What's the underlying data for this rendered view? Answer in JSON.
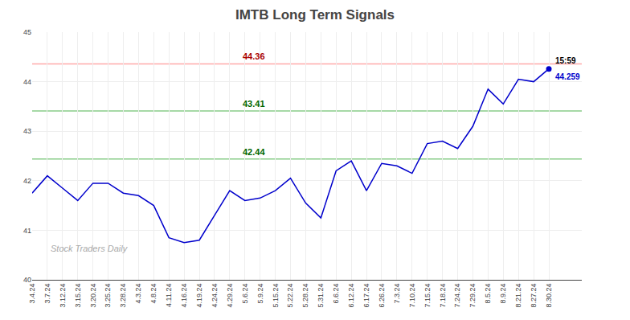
{
  "chart_data": {
    "type": "line",
    "title": "IMTB Long Term Signals",
    "categories": [
      "3.4.24",
      "3.7.24",
      "3.12.24",
      "3.15.24",
      "3.20.24",
      "3.25.24",
      "3.28.24",
      "4.3.24",
      "4.8.24",
      "4.11.24",
      "4.16.24",
      "4.19.24",
      "4.24.24",
      "4.29.24",
      "5.6.24",
      "5.9.24",
      "5.15.24",
      "5.22.24",
      "5.28.24",
      "5.31.24",
      "6.6.24",
      "6.12.24",
      "6.17.24",
      "6.26.24",
      "7.3.24",
      "7.10.24",
      "7.15.24",
      "7.18.24",
      "7.24.24",
      "7.29.24",
      "8.5.24",
      "8.9.24",
      "8.21.24",
      "8.27.24",
      "8.30.24"
    ],
    "values": [
      41.75,
      42.1,
      41.85,
      41.6,
      41.95,
      41.95,
      41.75,
      41.7,
      41.5,
      40.85,
      40.75,
      40.8,
      41.3,
      41.8,
      41.6,
      41.65,
      41.8,
      42.05,
      41.55,
      41.25,
      42.2,
      42.4,
      41.8,
      42.35,
      42.3,
      42.15,
      42.75,
      42.8,
      42.65,
      43.1,
      43.85,
      43.55,
      44.05,
      44.0,
      44.259
    ],
    "color": "#0000cc",
    "ylim": [
      40,
      45
    ],
    "yticks": [
      40,
      41,
      42,
      43,
      44,
      45
    ],
    "grid": true,
    "hlines": [
      {
        "value": 44.36,
        "label": "44.36",
        "color": "#ffaaaa",
        "label_color": "#aa0000"
      },
      {
        "value": 43.41,
        "label": "43.41",
        "color": "#88cc88",
        "label_color": "#006600"
      },
      {
        "value": 42.44,
        "label": "42.44",
        "color": "#88cc88",
        "label_color": "#006600"
      }
    ],
    "last_price": {
      "time": "15:59",
      "value": 44.259
    },
    "watermark": {
      "text": "Stock Traders Daily",
      "color": "#aaaaaa"
    }
  }
}
